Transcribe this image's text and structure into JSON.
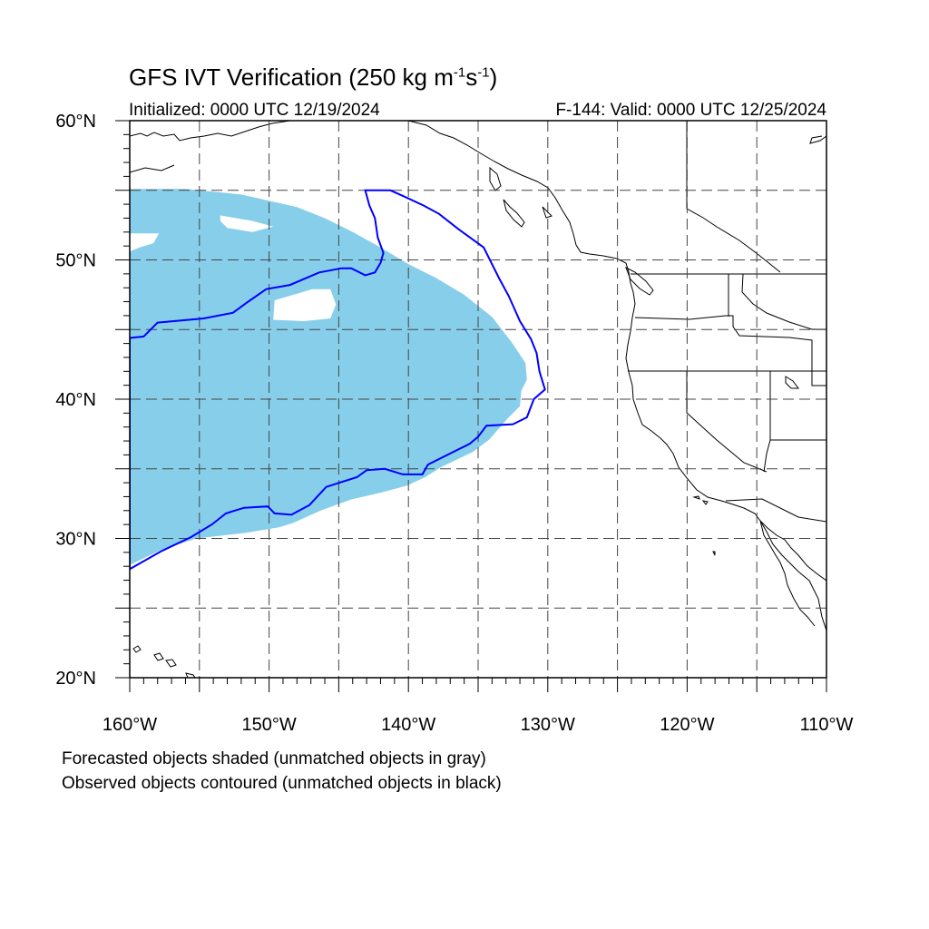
{
  "title": {
    "main": "GFS IVT Verification (250 kg m",
    "exp1": "-1",
    "mid": "s",
    "exp2": "-1",
    "end": ")"
  },
  "subtitle_left": "Initialized: 0000 UTC 12/19/2024",
  "subtitle_right": "F-144: Valid: 0000 UTC 12/25/2024",
  "lat_labels": [
    "60°N",
    "50°N",
    "40°N",
    "30°N",
    "20°N"
  ],
  "lon_labels": [
    "160°W",
    "150°W",
    "140°W",
    "130°W",
    "120°W",
    "110°W"
  ],
  "notes": [
    "Forecasted objects shaded (unmatched objects in gray)",
    "Observed objects contoured (unmatched objects in black)"
  ],
  "map": {
    "lon_range": [
      -160,
      -110
    ],
    "lat_range": [
      20,
      60
    ],
    "grid_spacing_deg": 5,
    "forecast_object": {
      "color": "#87ceeb",
      "outline": [
        [
          -160,
          55.1
        ],
        [
          -156,
          55.1
        ],
        [
          -152,
          54.7
        ],
        [
          -148,
          53.8
        ],
        [
          -146,
          53.0
        ],
        [
          -144,
          52
        ],
        [
          -142,
          50.9
        ],
        [
          -140,
          49.7
        ],
        [
          -138,
          48.7
        ],
        [
          -136,
          47.5
        ],
        [
          -134,
          45.9
        ],
        [
          -132.6,
          44.1
        ],
        [
          -131.6,
          42.6
        ],
        [
          -131.5,
          41.4
        ],
        [
          -131.9,
          40.6
        ],
        [
          -132.0,
          39.5
        ],
        [
          -132.9,
          38.6
        ],
        [
          -134.2,
          37.1
        ],
        [
          -135.4,
          36.2
        ],
        [
          -137.7,
          35.1
        ],
        [
          -138.8,
          34.4
        ],
        [
          -140.1,
          33.8
        ],
        [
          -141.9,
          33.3
        ],
        [
          -144.1,
          32.8
        ],
        [
          -146.3,
          32.0
        ],
        [
          -148.3,
          31.1
        ],
        [
          -149.3,
          30.8
        ],
        [
          -151.7,
          30.4
        ],
        [
          -155.2,
          30.0
        ],
        [
          -157.7,
          29.2
        ],
        [
          -160,
          28.1
        ]
      ],
      "holes": [
        [
          [
            -153.5,
            53.2
          ],
          [
            -151.2,
            52.8
          ],
          [
            -149.7,
            52.4
          ],
          [
            -151.2,
            52.0
          ],
          [
            -153.0,
            52.3
          ],
          [
            -153.5,
            52.8
          ]
        ],
        [
          [
            -146.9,
            47.9
          ],
          [
            -145.6,
            47.9
          ],
          [
            -145.2,
            46.8
          ],
          [
            -145.6,
            45.8
          ],
          [
            -147.5,
            45.6
          ],
          [
            -149.7,
            45.7
          ],
          [
            -149.6,
            47.1
          ]
        ],
        [
          [
            -160,
            51.9
          ],
          [
            -157.9,
            51.9
          ],
          [
            -158.3,
            51.2
          ],
          [
            -159.3,
            50.9
          ],
          [
            -160,
            50.6
          ]
        ]
      ]
    },
    "observed_object": {
      "color": "#0000ff",
      "outline": [
        [
          -160,
          44.4
        ],
        [
          -159.0,
          44.5
        ],
        [
          -158,
          45.5
        ],
        [
          -154.7,
          45.8
        ],
        [
          -152.6,
          46.2
        ],
        [
          -151.5,
          47
        ],
        [
          -150.2,
          47.9
        ],
        [
          -148.5,
          48.2
        ],
        [
          -146.4,
          49.1
        ],
        [
          -144.8,
          49.4
        ],
        [
          -144.1,
          49.4
        ],
        [
          -143.1,
          48.9
        ],
        [
          -142.4,
          49.1
        ],
        [
          -142.0,
          49.8
        ],
        [
          -141.8,
          50.5
        ],
        [
          -142.2,
          51.6
        ],
        [
          -142.4,
          53.0
        ],
        [
          -142.8,
          53.9
        ],
        [
          -143.1,
          55.0
        ],
        [
          -141.3,
          55.0
        ],
        [
          -140.4,
          54.6
        ],
        [
          -138.9,
          53.9
        ],
        [
          -137.8,
          53.3
        ],
        [
          -136.4,
          52.2
        ],
        [
          -134.6,
          50.9
        ],
        [
          -133.5,
          48.7
        ],
        [
          -132.8,
          47.4
        ],
        [
          -132.0,
          45.6
        ],
        [
          -131.2,
          44.3
        ],
        [
          -130.8,
          43.3
        ],
        [
          -130.6,
          42.0
        ],
        [
          -130.2,
          40.7
        ],
        [
          -131.0,
          40.0
        ],
        [
          -131.5,
          38.7
        ],
        [
          -132.5,
          38.2
        ],
        [
          -134.4,
          38.1
        ],
        [
          -135.0,
          37.3
        ],
        [
          -135.6,
          36.8
        ],
        [
          -137.2,
          36.0
        ],
        [
          -138.6,
          35.3
        ],
        [
          -139.0,
          34.6
        ],
        [
          -140.4,
          34.6
        ],
        [
          -141.7,
          35.0
        ],
        [
          -143.0,
          34.9
        ],
        [
          -143.7,
          34.4
        ],
        [
          -145.9,
          33.7
        ],
        [
          -147.1,
          32.4
        ],
        [
          -148.4,
          31.7
        ],
        [
          -149.6,
          31.8
        ],
        [
          -150.1,
          32.3
        ],
        [
          -151.8,
          32.2
        ],
        [
          -153.1,
          31.8
        ],
        [
          -154.1,
          31.0
        ],
        [
          -155.6,
          30.1
        ],
        [
          -157.7,
          29.1
        ],
        [
          -160,
          27.8
        ]
      ]
    },
    "coastline_color": "#000000",
    "grid_color": "#444444"
  }
}
